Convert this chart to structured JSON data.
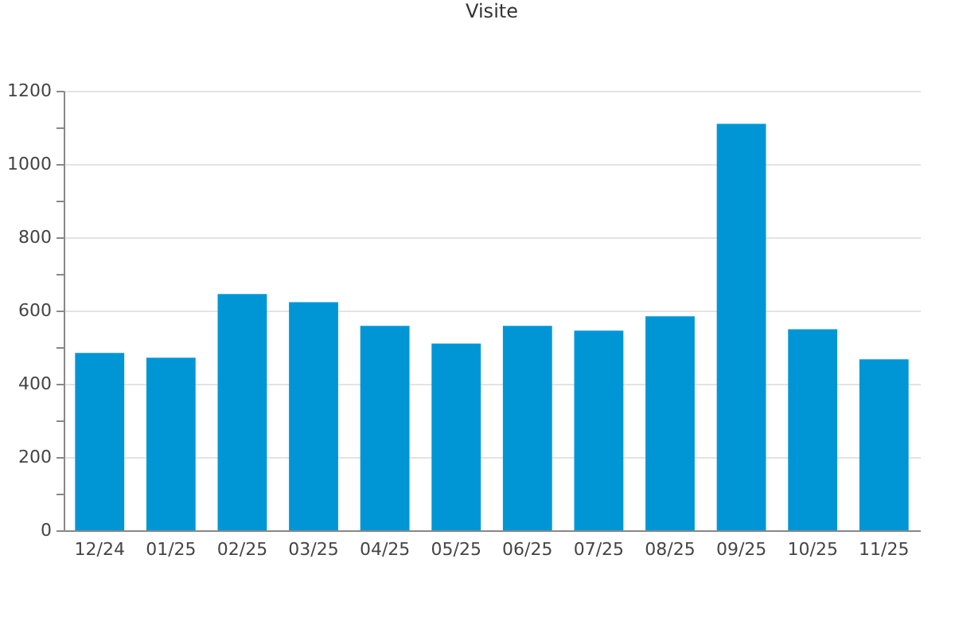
{
  "chart_data": {
    "type": "bar",
    "title": "Visite",
    "categories": [
      "12/24",
      "01/25",
      "02/25",
      "03/25",
      "04/25",
      "05/25",
      "06/25",
      "07/25",
      "08/25",
      "09/25",
      "10/25",
      "11/25"
    ],
    "values": [
      484,
      471,
      645,
      623,
      558,
      510,
      558,
      545,
      584,
      1110,
      549,
      467
    ],
    "color": "#0096d6",
    "ylim": [
      0,
      1200
    ],
    "yticks": [
      0,
      {
        "value": 100,
        "label": null
      },
      200,
      {
        "value": 300,
        "label": null
      },
      400,
      {
        "value": 500,
        "label": null
      },
      600,
      {
        "value": 700,
        "label": null
      },
      800,
      {
        "value": 900,
        "label": null
      },
      1000,
      {
        "value": 1100,
        "label": null
      },
      1200
    ],
    "grid": "y"
  }
}
